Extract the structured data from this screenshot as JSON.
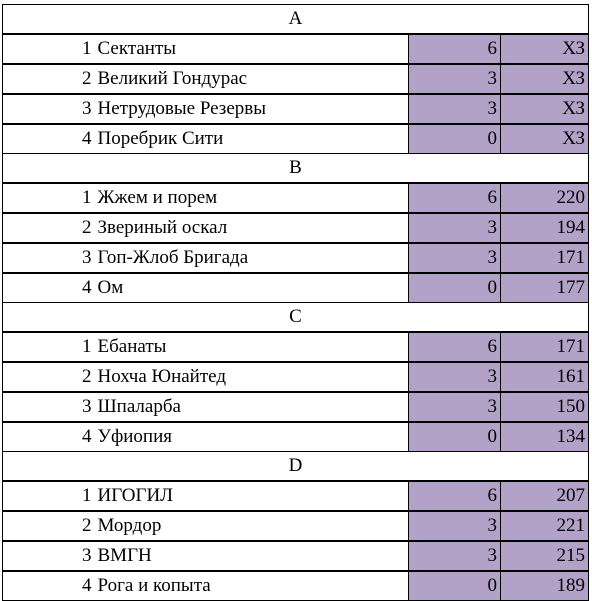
{
  "colors": {
    "number_cell_fill": "#b3a2c7"
  },
  "groups": [
    {
      "name": "A",
      "rows": [
        {
          "pos": "1",
          "team": "Сектанты",
          "points": "6",
          "score": "ХЗ"
        },
        {
          "pos": "2",
          "team": "Великий Гондурас",
          "points": "3",
          "score": "ХЗ"
        },
        {
          "pos": "3",
          "team": "Нетрудовые Резервы",
          "points": "3",
          "score": "ХЗ"
        },
        {
          "pos": "4",
          "team": "Поребрик Сити",
          "points": "0",
          "score": "ХЗ"
        }
      ]
    },
    {
      "name": "B",
      "rows": [
        {
          "pos": "1",
          "team": "Жжем и порем",
          "points": "6",
          "score": "220"
        },
        {
          "pos": "2",
          "team": "Звериный оскал",
          "points": "3",
          "score": "194"
        },
        {
          "pos": "3",
          "team": "Гоп-Жлоб Бригада",
          "points": "3",
          "score": "171"
        },
        {
          "pos": "4",
          "team": "Ом",
          "points": "0",
          "score": "177"
        }
      ]
    },
    {
      "name": "C",
      "rows": [
        {
          "pos": "1",
          "team": "Ебанаты",
          "points": "6",
          "score": "171"
        },
        {
          "pos": "2",
          "team": "Нохча Юнайтед",
          "points": "3",
          "score": "161"
        },
        {
          "pos": "3",
          "team": "Шпаларба",
          "points": "3",
          "score": "150"
        },
        {
          "pos": "4",
          "team": "Уфиопия",
          "points": "0",
          "score": "134"
        }
      ]
    },
    {
      "name": "D",
      "rows": [
        {
          "pos": "1",
          "team": "ИГОГИЛ",
          "points": "6",
          "score": "207"
        },
        {
          "pos": "2",
          "team": "Мордор",
          "points": "3",
          "score": "221"
        },
        {
          "pos": "3",
          "team": "ВМГН",
          "points": "3",
          "score": "215"
        },
        {
          "pos": "4",
          "team": "Рога и копыта",
          "points": "0",
          "score": "189"
        }
      ]
    }
  ]
}
